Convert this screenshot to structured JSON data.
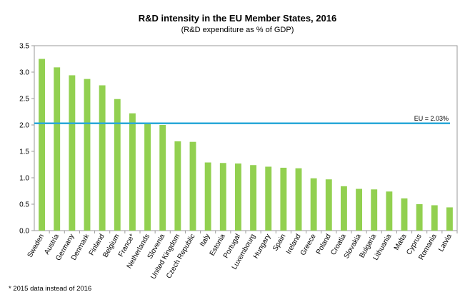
{
  "chart_data": {
    "type": "bar",
    "title": "R&D intensity in the EU Member States, 2016",
    "subtitle": "(R&D expenditure as % of GDP)",
    "categories": [
      "Sweden",
      "Austria",
      "Germany",
      "Denmark",
      "Finland",
      "Belgium",
      "France*",
      "Netherlands",
      "Slovenia",
      "United Kingdom",
      "Czech Republic",
      "Italy",
      "Estonia",
      "Portugal",
      "Luxembourg",
      "Hungary",
      "Spain",
      "Ireland",
      "Greece",
      "Poland",
      "Croatia",
      "Slovakia",
      "Bulgaria",
      "Lithuania",
      "Malta",
      "Cyprus",
      "Romania",
      "Latvia"
    ],
    "values": [
      3.25,
      3.09,
      2.94,
      2.87,
      2.75,
      2.49,
      2.22,
      2.03,
      2.0,
      1.69,
      1.68,
      1.29,
      1.28,
      1.27,
      1.24,
      1.21,
      1.19,
      1.18,
      0.99,
      0.97,
      0.84,
      0.79,
      0.78,
      0.74,
      0.61,
      0.5,
      0.48,
      0.44
    ],
    "ylim": [
      0,
      3.5
    ],
    "yticks": [
      "0.0",
      "0.5",
      "1.0",
      "1.5",
      "2.0",
      "2.5",
      "3.0",
      "3.5"
    ],
    "reference_line": {
      "value": 2.03,
      "label": "EU = 2.03%",
      "color": "#2aa8d8"
    },
    "bar_color": "#92d050",
    "grid": false,
    "legend": "none"
  },
  "footnote": "* 2015 data instead of 2016"
}
